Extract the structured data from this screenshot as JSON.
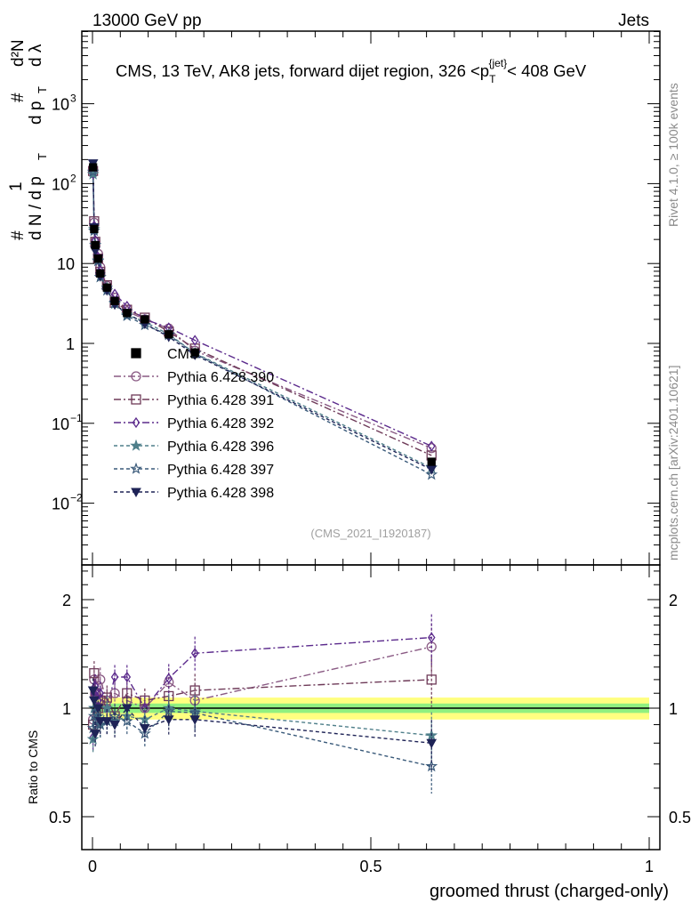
{
  "header": {
    "left": "13000 GeV pp",
    "right": "Jets"
  },
  "side_labels": {
    "rivet": "Rivet 4.1.0, ≥ 100k events",
    "mcplots": "mcplots.cern.ch [arXiv:2401.10621]"
  },
  "chart_data": {
    "type": "scatter",
    "title": "CMS, 13 TeV, AK8 jets, forward dijet region, 326 <p_T^{jet}< 408 GeV",
    "ylabel": "1/(dN/dp_T) d²N/(dp_T dλ)",
    "ylabel_parts": {
      "a": "#",
      "b": "1",
      "c": "d N / d p",
      "d": "T",
      "e": "#",
      "f": "d²N",
      "g": "d p",
      "h": "d λ"
    },
    "xlabel": "groomed thrust (charged-only)",
    "analysis_tag": "(CMS_2021_I1920187)",
    "xlim": [
      -0.02,
      1.02
    ],
    "ylim": [
      0.0017,
      8000
    ],
    "yscale": "log",
    "x_ticks": [
      "0",
      "0.5",
      "1"
    ],
    "x_tick_values": [
      0,
      0.5,
      1
    ],
    "y_ticks": [
      {
        "v": 1000,
        "label": "10",
        "sup": "3"
      },
      {
        "v": 100,
        "label": "10",
        "sup": "2"
      },
      {
        "v": 10,
        "label": "10",
        "sup": ""
      },
      {
        "v": 1,
        "label": "1",
        "sup": ""
      },
      {
        "v": 0.1,
        "label": "10",
        "sup": "−1"
      },
      {
        "v": 0.01,
        "label": "10",
        "sup": "−2"
      }
    ],
    "x": [
      0.001,
      0.003,
      0.005,
      0.01,
      0.014,
      0.026,
      0.04,
      0.062,
      0.094,
      0.137,
      0.184,
      0.609
    ],
    "cms": [
      160,
      27,
      17,
      11.5,
      7.5,
      5.0,
      3.4,
      2.4,
      2.0,
      1.3,
      0.77,
      0.033
    ],
    "cms_rel_err": [
      0.05,
      0.05,
      0.05,
      0.05,
      0.05,
      0.05,
      0.05,
      0.05,
      0.05,
      0.06,
      0.07,
      0.1
    ],
    "series": [
      {
        "name": "Pythia 6.428 390",
        "color": "#8a5a84",
        "marker": "circle-open",
        "dash": "8,3,2,3",
        "ratio": [
          0.93,
          1.2,
          1.1,
          1.15,
          1.2,
          1.05,
          1.1,
          1.05,
          1.0,
          1.18,
          1.05,
          1.48
        ]
      },
      {
        "name": "Pythia 6.428 391",
        "color": "#6e3a58",
        "marker": "square-open",
        "dash": "8,3,2,3",
        "ratio": [
          0.9,
          1.25,
          1.1,
          1.0,
          1.05,
          1.07,
          0.95,
          1.1,
          1.05,
          1.08,
          1.12,
          1.2
        ]
      },
      {
        "name": "Pythia 6.428 392",
        "color": "#5b2a8c",
        "marker": "diamond-open",
        "dash": "8,3,2,3",
        "ratio": [
          0.83,
          1.1,
          1.15,
          1.05,
          1.1,
          1.0,
          1.22,
          1.22,
          1.0,
          1.21,
          1.42,
          1.57
        ]
      },
      {
        "name": "Pythia 6.428 396",
        "color": "#4f7f8a",
        "marker": "star-filled",
        "dash": "4,3",
        "ratio": [
          0.82,
          1.0,
          1.0,
          0.95,
          0.9,
          1.0,
          0.92,
          0.95,
          0.93,
          1.0,
          0.98,
          0.84
        ]
      },
      {
        "name": "Pythia 6.428 397",
        "color": "#3a5a7a",
        "marker": "star-open",
        "dash": "4,3",
        "ratio": [
          0.88,
          0.95,
          1.0,
          0.93,
          0.9,
          0.92,
          0.95,
          0.92,
          0.85,
          0.98,
          0.97,
          0.69
        ]
      },
      {
        "name": "Pythia 6.428 398",
        "color": "#1e2356",
        "marker": "triangle-down-filled",
        "dash": "4,3",
        "ratio": [
          1.12,
          1.05,
          0.85,
          1.0,
          0.92,
          0.92,
          0.9,
          1.0,
          0.88,
          0.93,
          0.93,
          0.8
        ]
      }
    ],
    "legend": {
      "placement": "center-left",
      "cms_label": "CMS"
    },
    "ratio_panel": {
      "ylabel": "Ratio to CMS",
      "ylim": [
        0.4,
        2.5
      ],
      "yscale": "log",
      "y_ticks": [
        {
          "v": 2,
          "label": "2"
        },
        {
          "v": 1,
          "label": "1"
        },
        {
          "v": 0.5,
          "label": "0.5"
        }
      ],
      "band_inner_rel": 0.03,
      "band_outer_rel": 0.07,
      "band_inner_color": "#90f080",
      "band_outer_color": "#ffff80"
    }
  }
}
